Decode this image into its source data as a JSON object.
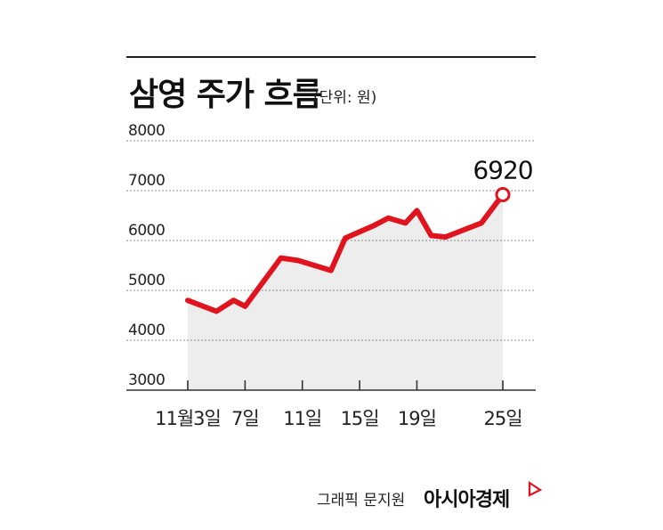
{
  "chart_data": {
    "type": "line",
    "title": "삼영 주가 흐름",
    "unit_note": "(단위: 원)",
    "ylim": [
      3000,
      8000
    ],
    "yticks": [
      "8000",
      "7000",
      "6000",
      "5000",
      "4000",
      "3000"
    ],
    "x_tick_labels": [
      {
        "day": 1,
        "label": "11월3일"
      },
      {
        "day": 5,
        "label": "7일"
      },
      {
        "day": 9,
        "label": "11일"
      },
      {
        "day": 13,
        "label": "15일"
      },
      {
        "day": 17,
        "label": "19일"
      },
      {
        "day": 23,
        "label": "25일"
      }
    ],
    "series": [
      {
        "x": [
          1,
          3,
          4.2,
          5,
          7.5,
          8.7,
          11,
          12,
          14,
          15,
          16.2,
          17,
          18,
          19,
          21.5,
          23
        ],
        "y": [
          4800,
          4580,
          4800,
          4680,
          5650,
          5600,
          5400,
          6050,
          6300,
          6450,
          6350,
          6600,
          6100,
          6070,
          6350,
          6920
        ]
      }
    ],
    "data_label": "6920",
    "grid": true,
    "colors": {
      "line": "#e0141e",
      "area": "#ededed",
      "grid": "#8a8a8a",
      "axis": "#333333"
    }
  },
  "footer": {
    "credit": "그래픽 문지원",
    "brand": "아시아경제",
    "brand_icon": "flag-icon"
  }
}
